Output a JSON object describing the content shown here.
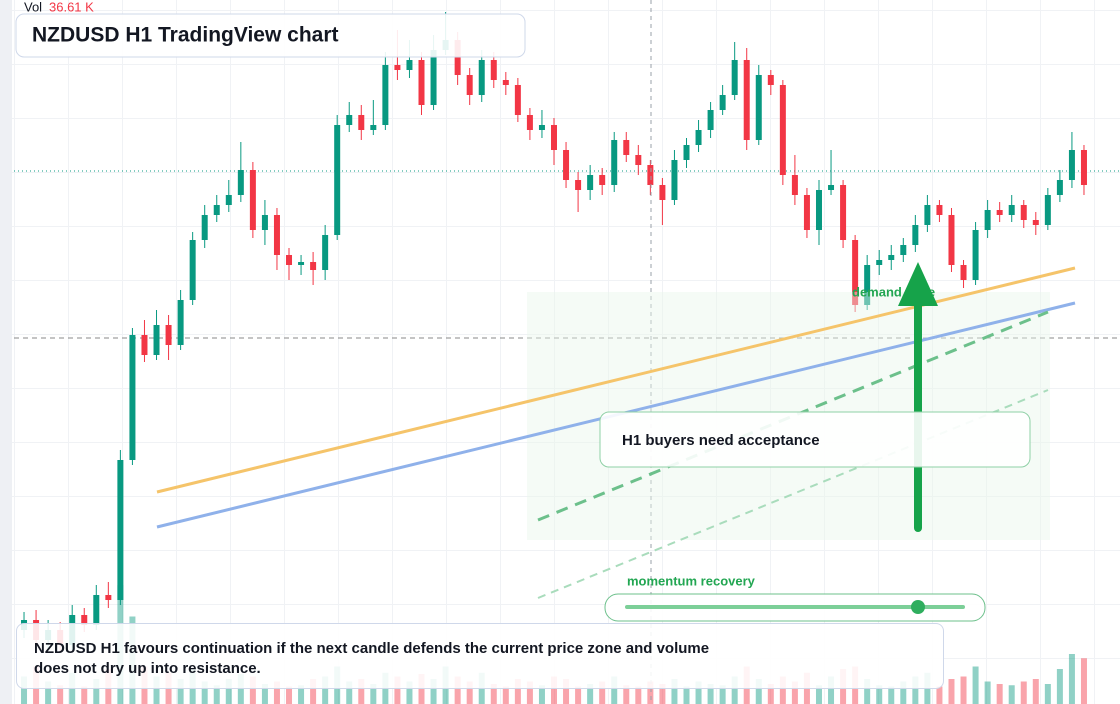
{
  "chart_data": {
    "type": "candlestick",
    "title": "NZDUSD H1 TradingView chart",
    "open": [
      0.5907,
      0.5908,
      0.5906,
      0.5907,
      0.59055,
      0.59085,
      0.59075,
      0.59105,
      0.591,
      0.5924,
      0.59365,
      0.59345,
      0.59375,
      0.59355,
      0.594,
      0.5946,
      0.59485,
      0.59495,
      0.59505,
      0.5953,
      0.5947,
      0.59485,
      0.59445,
      0.59435,
      0.59438,
      0.5943,
      0.59465,
      0.59575,
      0.59585,
      0.5957,
      0.59575,
      0.59635,
      0.5963,
      0.5964,
      0.59595,
      0.5965,
      0.5966,
      0.59625,
      0.59605,
      0.5964,
      0.5962,
      0.59615,
      0.59585,
      0.5957,
      0.59575,
      0.5955,
      0.5952,
      0.5951,
      0.59525,
      0.59515,
      0.5956,
      0.59545,
      0.59535,
      0.59515,
      0.595,
      0.5954,
      0.59555,
      0.5957,
      0.5959,
      0.59605,
      0.5964,
      0.5956,
      0.59625,
      0.59615,
      0.59525,
      0.59505,
      0.5947,
      0.5951,
      0.59515,
      0.5946,
      0.59395,
      0.59435,
      0.5944,
      0.59445,
      0.59455,
      0.59475,
      0.59495,
      0.59485,
      0.59435,
      0.5942,
      0.5947,
      0.5949,
      0.59485,
      0.59495,
      0.5948,
      0.59475,
      0.59505,
      0.5952,
      0.5955
    ],
    "high": [
      0.59088,
      0.5909,
      0.5908,
      0.59078,
      0.59095,
      0.59092,
      0.59115,
      0.59118,
      0.5925,
      0.59372,
      0.5938,
      0.5939,
      0.59385,
      0.5941,
      0.59468,
      0.59495,
      0.59505,
      0.5952,
      0.59558,
      0.59538,
      0.595,
      0.59492,
      0.59452,
      0.59445,
      0.59448,
      0.59475,
      0.59585,
      0.59598,
      0.59595,
      0.596,
      0.59648,
      0.5967,
      0.5966,
      0.59648,
      0.59665,
      0.59688,
      0.59668,
      0.59632,
      0.5965,
      0.59648,
      0.59628,
      0.59622,
      0.59592,
      0.5959,
      0.59582,
      0.59558,
      0.59528,
      0.59535,
      0.59532,
      0.59568,
      0.59568,
      0.59555,
      0.5954,
      0.59522,
      0.5955,
      0.59562,
      0.5958,
      0.59598,
      0.59615,
      0.59658,
      0.59652,
      0.59635,
      0.5963,
      0.5962,
      0.59545,
      0.59512,
      0.5952,
      0.5955,
      0.5952,
      0.59465,
      0.59445,
      0.5945,
      0.59455,
      0.59462,
      0.59485,
      0.59505,
      0.595,
      0.59492,
      0.5944,
      0.59478,
      0.595,
      0.59498,
      0.59505,
      0.595,
      0.59488,
      0.59512,
      0.5953,
      0.59568,
      0.59555
    ],
    "low": [
      0.59062,
      0.59052,
      0.5905,
      0.59047,
      0.5905,
      0.59068,
      0.5907,
      0.59092,
      0.59095,
      0.59235,
      0.59338,
      0.5934,
      0.5934,
      0.5935,
      0.59395,
      0.59452,
      0.59478,
      0.59488,
      0.59498,
      0.59462,
      0.59455,
      0.5943,
      0.5942,
      0.59425,
      0.59415,
      0.5942,
      0.5946,
      0.59568,
      0.5956,
      0.59565,
      0.5957,
      0.5962,
      0.59622,
      0.59585,
      0.5959,
      0.59645,
      0.59615,
      0.59595,
      0.59598,
      0.59612,
      0.59605,
      0.59578,
      0.5956,
      0.59562,
      0.59535,
      0.59512,
      0.59488,
      0.595,
      0.59505,
      0.59508,
      0.59538,
      0.59525,
      0.59505,
      0.59475,
      0.59495,
      0.59532,
      0.59548,
      0.59562,
      0.59585,
      0.596,
      0.5955,
      0.59555,
      0.59605,
      0.59515,
      0.59495,
      0.59462,
      0.59455,
      0.59505,
      0.59452,
      0.59388,
      0.5939,
      0.59425,
      0.5943,
      0.59438,
      0.59448,
      0.59468,
      0.59478,
      0.59428,
      0.59412,
      0.59415,
      0.59462,
      0.59478,
      0.59478,
      0.59472,
      0.59465,
      0.5947,
      0.59498,
      0.59512,
      0.59505
    ],
    "close": [
      0.5908,
      0.5906,
      0.5907,
      0.59055,
      0.59085,
      0.59075,
      0.59105,
      0.591,
      0.5924,
      0.59365,
      0.59345,
      0.59375,
      0.59355,
      0.594,
      0.5946,
      0.59485,
      0.59495,
      0.59505,
      0.5953,
      0.5947,
      0.59485,
      0.59445,
      0.59435,
      0.59438,
      0.5943,
      0.59465,
      0.59575,
      0.59585,
      0.5957,
      0.59575,
      0.59635,
      0.5963,
      0.5964,
      0.59595,
      0.5965,
      0.5966,
      0.59625,
      0.59605,
      0.5964,
      0.5962,
      0.59615,
      0.59585,
      0.5957,
      0.59575,
      0.5955,
      0.5952,
      0.5951,
      0.59525,
      0.59515,
      0.5956,
      0.59545,
      0.59535,
      0.59515,
      0.595,
      0.5954,
      0.59555,
      0.5957,
      0.5959,
      0.59605,
      0.5964,
      0.5956,
      0.59625,
      0.59615,
      0.59525,
      0.59505,
      0.5947,
      0.5951,
      0.59515,
      0.5946,
      0.59395,
      0.59435,
      0.5944,
      0.59445,
      0.59455,
      0.59475,
      0.59495,
      0.59485,
      0.59435,
      0.5942,
      0.5947,
      0.5949,
      0.59485,
      0.59495,
      0.5948,
      0.59475,
      0.59505,
      0.5952,
      0.5955,
      0.59515
    ],
    "volume_label": "Vol",
    "volume": [
      22,
      30,
      18,
      15,
      25,
      14,
      20,
      28,
      95,
      70,
      30,
      22,
      25,
      20,
      28,
      18,
      15,
      20,
      24,
      22,
      16,
      18,
      14,
      15,
      20,
      22,
      30,
      18,
      20,
      16,
      25,
      22,
      18,
      24,
      20,
      30,
      22,
      18,
      25,
      16,
      14,
      20,
      18,
      15,
      22,
      20,
      14,
      16,
      18,
      22,
      15,
      14,
      18,
      16,
      20,
      14,
      18,
      16,
      15,
      22,
      30,
      20,
      16,
      22,
      18,
      25,
      15,
      22,
      28,
      30,
      20,
      15,
      14,
      18,
      22,
      25,
      14,
      20,
      22,
      30,
      18,
      16,
      15,
      18,
      20,
      16,
      28,
      40,
      36.61
    ],
    "volume_value_label": "36.61 K",
    "ylim": [
      0.59,
      0.597
    ],
    "volume_ylim": [
      0,
      200
    ],
    "up_color": "#089981",
    "down_color": "#f23645",
    "price_lines": [
      0.59529,
      0.59362
    ]
  },
  "annotations": {
    "zone_label": "demand zone",
    "callout": "H1 buyers need acceptance",
    "slider_label": "momentum recovery",
    "note": "NZDUSD H1 favours continuation if the next candle defends the current price zone and volume does not dry up into resistance."
  }
}
